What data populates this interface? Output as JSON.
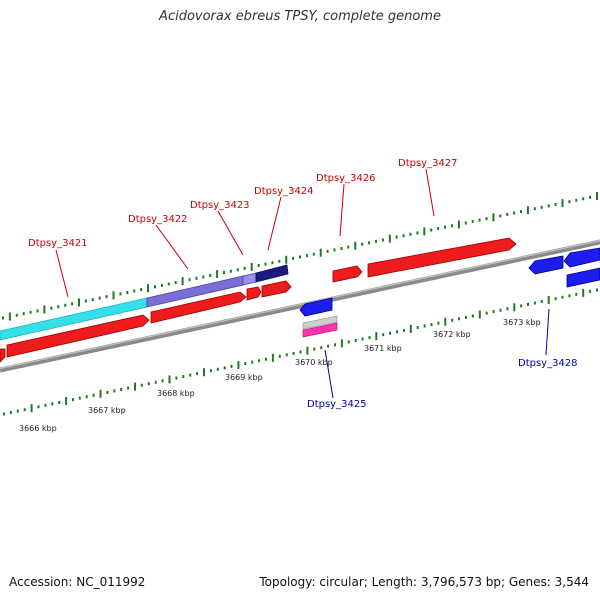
{
  "title": "Acidovorax ebreus TPSY, complete genome",
  "footer": {
    "accession": "Accession: NC_011992",
    "summary": "Topology: circular; Length: 3,796,573 bp; Genes: 3,544"
  },
  "colors": {
    "forward_label": "#cc0000",
    "reverse_label": "#0000aa",
    "backbone": "#888888",
    "tick": "#1e7a1e"
  },
  "ticks": [
    {
      "label": "3666 kbp"
    },
    {
      "label": "3667 kbp"
    },
    {
      "label": "3668 kbp"
    },
    {
      "label": "3669 kbp"
    },
    {
      "label": "3670 kbp"
    },
    {
      "label": "3671 kbp"
    },
    {
      "label": "3672 kbp"
    },
    {
      "label": "3673 kbp"
    }
  ],
  "gene_labels": [
    {
      "text": "Dtpsy_3421",
      "strand": "forward"
    },
    {
      "text": "Dtpsy_3422",
      "strand": "forward"
    },
    {
      "text": "Dtpsy_3423",
      "strand": "forward"
    },
    {
      "text": "Dtpsy_3424",
      "strand": "forward"
    },
    {
      "text": "Dtpsy_3426",
      "strand": "forward"
    },
    {
      "text": "Dtpsy_3427",
      "strand": "forward"
    },
    {
      "text": "Dtpsy_3425",
      "strand": "reverse"
    },
    {
      "text": "Dtpsy_3428",
      "strand": "reverse"
    }
  ]
}
